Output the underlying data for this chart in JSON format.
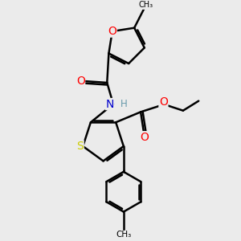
{
  "bg_color": "#ebebeb",
  "bond_color": "#000000",
  "bond_width": 1.8,
  "atom_colors": {
    "O": "#ff0000",
    "N": "#0000cd",
    "S": "#cccc00",
    "C": "#000000",
    "H": "#6699aa"
  },
  "font_size": 8.5,
  "figsize": [
    3.0,
    3.0
  ],
  "dpi": 100
}
